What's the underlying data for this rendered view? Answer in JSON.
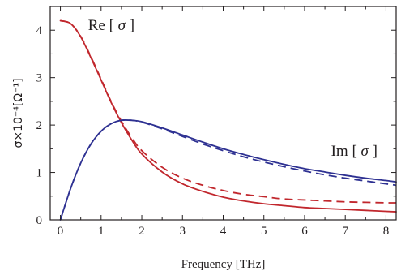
{
  "chart_data": {
    "type": "line",
    "xlabel": "Frequency [THz]",
    "ylabel": "σ×10⁻⁴[Ω⁻¹]",
    "xlim": [
      -0.25,
      8.25
    ],
    "ylim": [
      0,
      4.5
    ],
    "x_ticks": [
      0,
      1,
      2,
      3,
      4,
      5,
      6,
      7,
      8
    ],
    "y_ticks": [
      0,
      1,
      2,
      3,
      4
    ],
    "grid": false,
    "legend": "none",
    "x": [
      0,
      0.25,
      0.5,
      0.75,
      1.0,
      1.25,
      1.5,
      1.75,
      2.0,
      2.5,
      3.0,
      3.5,
      4.0,
      4.5,
      5.0,
      5.5,
      6.0,
      6.5,
      7.0,
      7.5,
      8.0,
      8.25
    ],
    "series": [
      {
        "key": "re_solid",
        "style": "solid",
        "color": "#c1272d",
        "values": [
          4.2,
          4.14,
          3.86,
          3.42,
          2.95,
          2.47,
          2.05,
          1.69,
          1.39,
          1.01,
          0.76,
          0.6,
          0.48,
          0.4,
          0.34,
          0.3,
          0.26,
          0.24,
          0.22,
          0.2,
          0.18,
          0.17
        ]
      },
      {
        "key": "re_dashed",
        "style": "dashed",
        "color": "#c1272d",
        "values": [
          4.2,
          4.14,
          3.87,
          3.44,
          2.97,
          2.49,
          2.08,
          1.74,
          1.46,
          1.11,
          0.88,
          0.73,
          0.62,
          0.54,
          0.49,
          0.44,
          0.42,
          0.4,
          0.38,
          0.37,
          0.36,
          0.36
        ]
      },
      {
        "key": "im_solid",
        "style": "solid",
        "color": "#2e3192",
        "values": [
          0,
          0.66,
          1.2,
          1.6,
          1.87,
          2.03,
          2.1,
          2.1,
          2.07,
          1.94,
          1.79,
          1.64,
          1.5,
          1.38,
          1.27,
          1.17,
          1.08,
          1.01,
          0.94,
          0.88,
          0.83,
          0.8
        ]
      },
      {
        "key": "im_dashed",
        "style": "dashed",
        "color": "#2e3192",
        "values": [
          0,
          0.66,
          1.2,
          1.6,
          1.87,
          2.03,
          2.1,
          2.1,
          2.06,
          1.92,
          1.76,
          1.6,
          1.46,
          1.33,
          1.22,
          1.12,
          1.03,
          0.95,
          0.88,
          0.82,
          0.76,
          0.73
        ]
      }
    ],
    "annotations": [
      {
        "key": "re",
        "text": "Re",
        "bracket_text": "σ",
        "anchor_x": 0.68,
        "anchor_y": 4.0
      },
      {
        "key": "im",
        "text": "Im",
        "bracket_text": "σ",
        "anchor_x": 6.65,
        "anchor_y": 1.35
      }
    ]
  }
}
